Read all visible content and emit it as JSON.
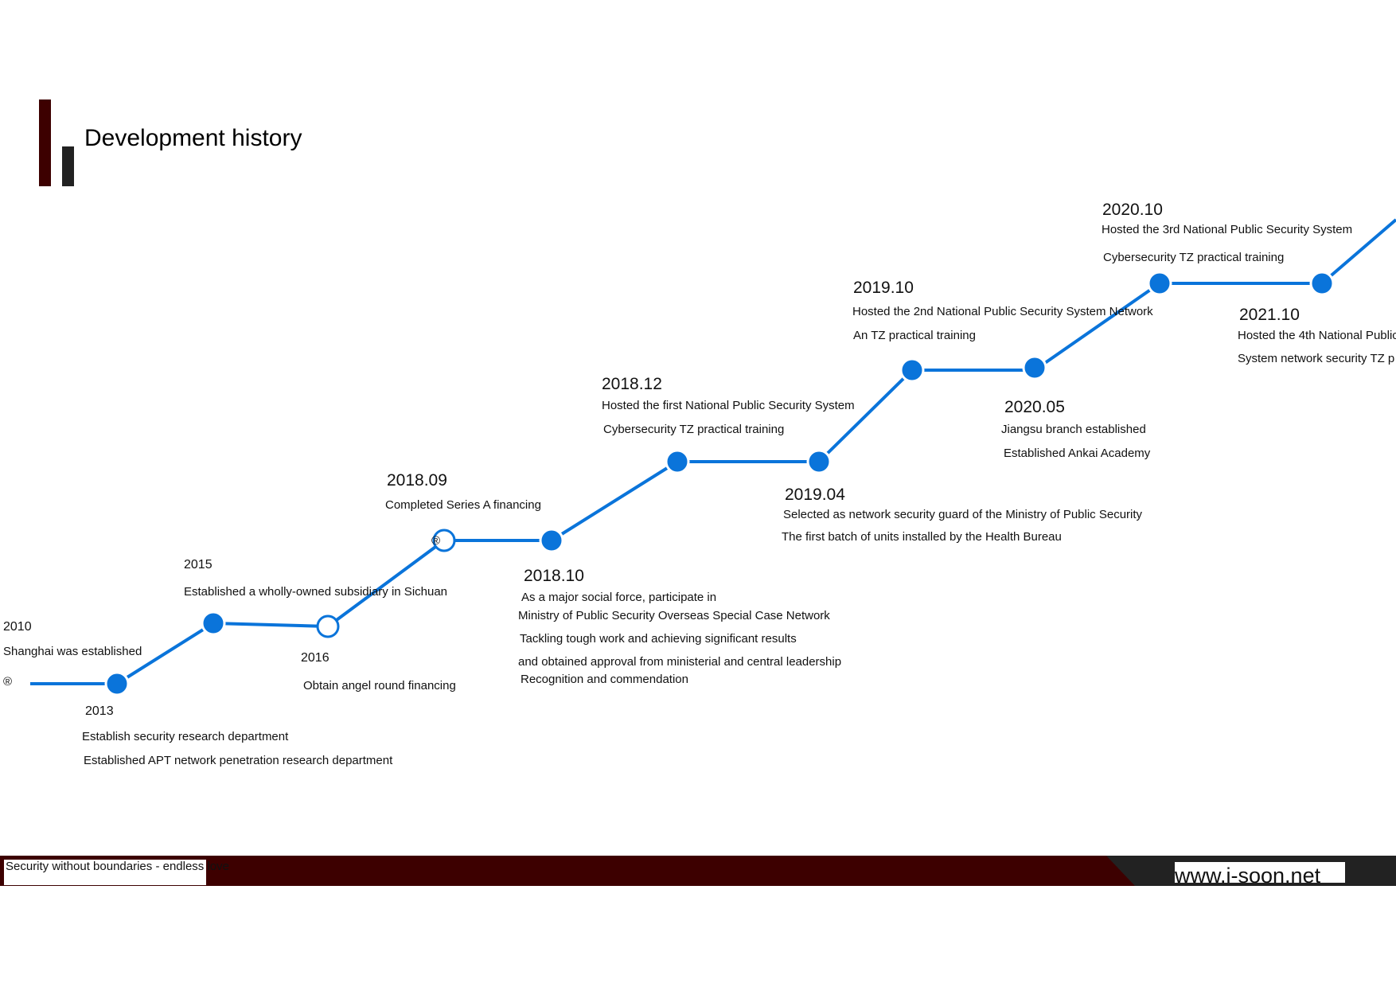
{
  "header": {
    "title": "Development history"
  },
  "colors": {
    "line": "#0a74da",
    "accent_dark_red": "#3d0000",
    "accent_dark_gray": "#222222"
  },
  "timeline": {
    "events": [
      {
        "date": "2010",
        "lines": [
          "Shanghai was established"
        ]
      },
      {
        "date": "2013",
        "lines": [
          "Establish security research department",
          "Established APT network penetration research department"
        ]
      },
      {
        "date": "2015",
        "lines": [
          "Established a wholly-owned subsidiary in Sichuan"
        ]
      },
      {
        "date": "2016",
        "lines": [
          "Obtain angel round financing"
        ]
      },
      {
        "date": "2018.09",
        "lines": [
          "Completed Series A financing"
        ]
      },
      {
        "date": "2018.10",
        "lines": [
          "As a major social force, participate in",
          "Ministry of Public Security Overseas Special Case Network",
          "Tackling tough work and achieving significant results",
          "and obtained approval from ministerial and central leadership",
          "Recognition and commendation"
        ]
      },
      {
        "date": "2018.12",
        "lines": [
          "Hosted the first National Public Security System",
          "Cybersecurity TZ practical training"
        ]
      },
      {
        "date": "2019.04",
        "lines": [
          "Selected as network security guard of the Ministry of Public Security",
          "The first batch of units installed by the Health Bureau"
        ]
      },
      {
        "date": "2019.10",
        "lines": [
          "Hosted the 2nd National Public Security System Network",
          "An TZ practical training"
        ]
      },
      {
        "date": "2020.05",
        "lines": [
          "Jiangsu branch established",
          "Established Ankai Academy"
        ]
      },
      {
        "date": "2020.10",
        "lines": [
          "Hosted the 3rd National Public Security System",
          "Cybersecurity TZ practical training"
        ]
      },
      {
        "date": "2021.10",
        "lines": [
          "Hosted the 4th National Public",
          "System network security TZ p"
        ]
      }
    ],
    "registered_marks": [
      "®",
      "®"
    ]
  },
  "footer": {
    "slogan": "Security without boundaries - endless love",
    "url": "www.i-soon.net"
  }
}
